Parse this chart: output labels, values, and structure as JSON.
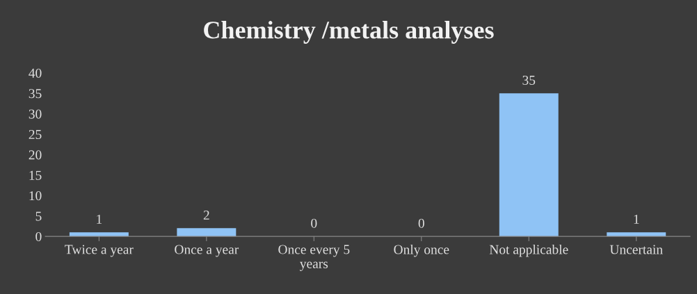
{
  "chart_data": {
    "type": "bar",
    "title": "Chemistry /metals analyses",
    "categories": [
      "Twice a year",
      "Once a year",
      "Once every 5\nyears",
      "Only once",
      "Not applicable",
      "Uncertain"
    ],
    "values": [
      1,
      2,
      0,
      0,
      35,
      1
    ],
    "color": "#8fc3f5",
    "ylim": [
      0,
      40
    ],
    "yticks": [
      0,
      5,
      10,
      15,
      20,
      25,
      30,
      35,
      40
    ],
    "data_labels": true
  }
}
